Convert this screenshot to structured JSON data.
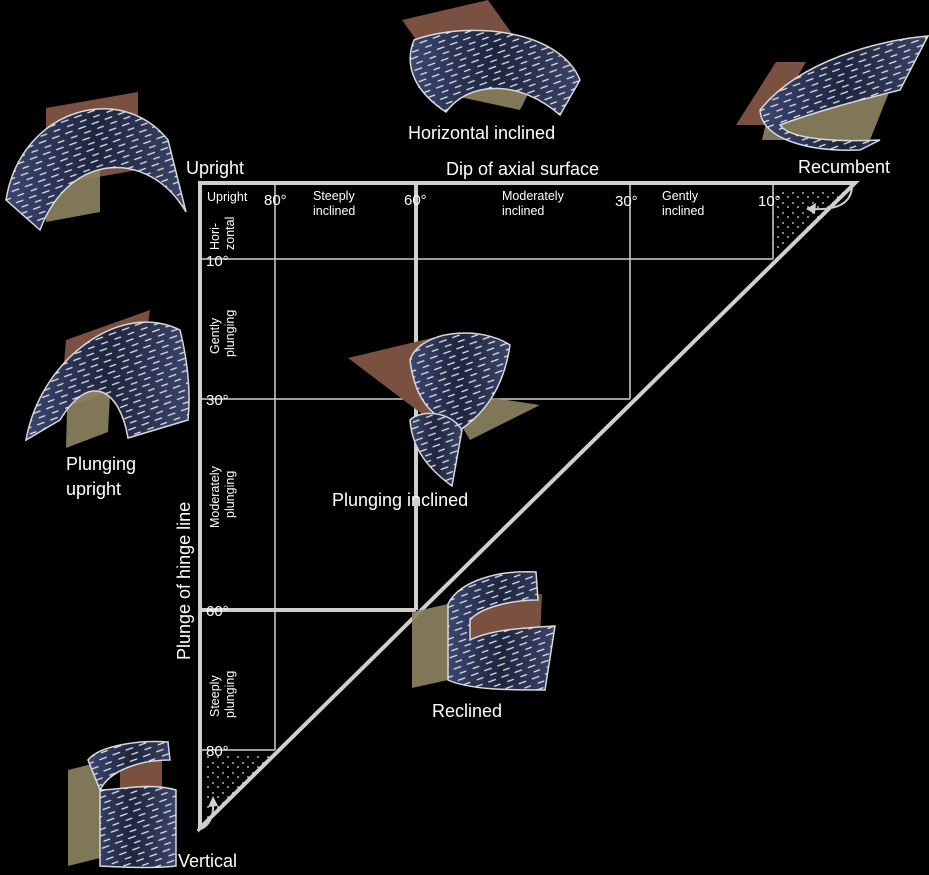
{
  "axes": {
    "top_title": "Dip of axial surface",
    "left_title": "Plunge of hinge line"
  },
  "corner_labels": {
    "upright": "Upright",
    "recumbent": "Recumbent",
    "vertical": "Vertical"
  },
  "dip_ticks": {
    "upright": "Upright",
    "d80": "80°",
    "d60": "60°",
    "d30": "30°",
    "d10": "10°"
  },
  "dip_zones": {
    "steeply": [
      "Steeply",
      "inclined"
    ],
    "moderately": [
      "Moderately",
      "inclined"
    ],
    "gently": [
      "Gently",
      "inclined"
    ]
  },
  "plunge_ticks": {
    "p10": "10°",
    "p30": "30°",
    "p60": "60°",
    "p80": "80°"
  },
  "plunge_zones": {
    "horizontal": [
      "Hori-",
      "zontal"
    ],
    "gently": [
      "Gently",
      "plunging"
    ],
    "moderately": [
      "Moderately",
      "plunging"
    ],
    "steeply": [
      "Steeply",
      "plunging"
    ]
  },
  "fold_labels": {
    "horizontal_inclined": "Horizontal inclined",
    "plunging_upright": [
      "Plunging",
      "upright"
    ],
    "plunging_inclined": "Plunging inclined",
    "reclined": "Reclined"
  },
  "colors": {
    "background": "#000000",
    "line": "#cfcfcf",
    "fold_surface": "#2b3556",
    "axial_plane_brown": "#7a5040",
    "axial_plane_olive": "#8d8462"
  }
}
